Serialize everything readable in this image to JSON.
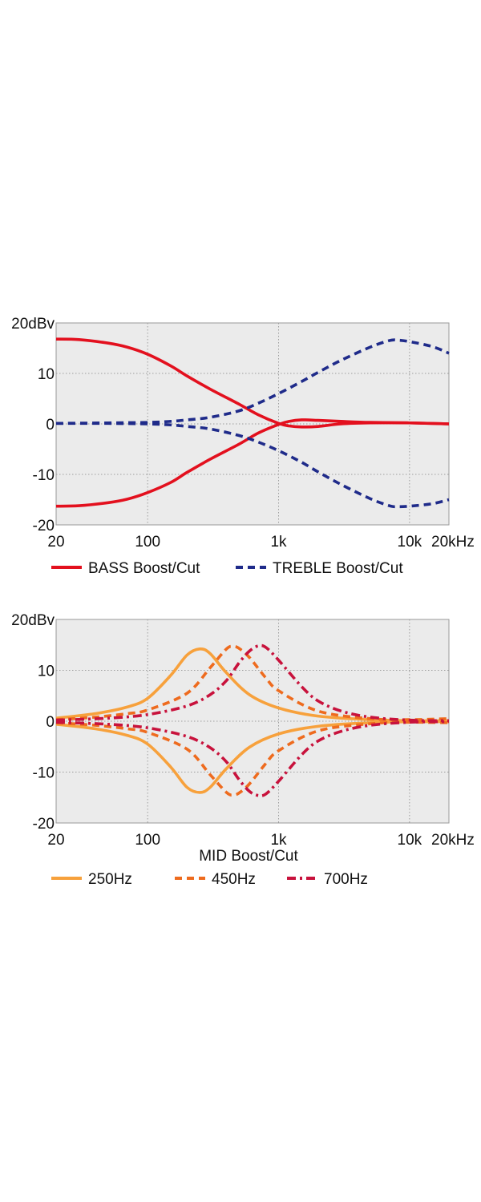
{
  "chart_data": [
    {
      "type": "line",
      "x_scale": "log",
      "xlim": [
        20,
        20000
      ],
      "ylim": [
        -20,
        20
      ],
      "grid": true,
      "background": "#ebebeb",
      "x_ticks": [
        {
          "value": 20,
          "label": "20"
        },
        {
          "value": 100,
          "label": "100"
        },
        {
          "value": 1000,
          "label": "1k"
        },
        {
          "value": 10000,
          "label": "10k"
        },
        {
          "value": 20000,
          "label": "20kHz"
        }
      ],
      "y_ticks": [
        {
          "value": 20,
          "label": "20dBv"
        },
        {
          "value": 10,
          "label": "10"
        },
        {
          "value": 0,
          "label": "0"
        },
        {
          "value": -10,
          "label": "-10"
        },
        {
          "value": -20,
          "label": "-20"
        }
      ],
      "xlabel": "",
      "legend_placement": "bottom",
      "legend": [
        {
          "label": "BASS Boost/Cut",
          "color": "#e3101e",
          "style": "solid"
        },
        {
          "label": "TREBLE Boost/Cut",
          "color": "#1f2b8a",
          "style": "dashed"
        }
      ],
      "series": [
        {
          "group": "BASS Boost/Cut",
          "color": "#e3101e",
          "style": "solid",
          "x": [
            20,
            30,
            50,
            70,
            100,
            150,
            200,
            300,
            500,
            700,
            1000,
            1200,
            1500,
            2000,
            3000,
            5000,
            10000,
            20000
          ],
          "y": [
            16.8,
            16.7,
            16.0,
            15.2,
            13.8,
            11.5,
            9.5,
            6.9,
            3.9,
            1.8,
            0.1,
            -0.4,
            -0.6,
            -0.5,
            0.0,
            0.2,
            0.2,
            0.0
          ]
        },
        {
          "group": "BASS Boost/Cut",
          "color": "#e3101e",
          "style": "solid",
          "x": [
            20,
            30,
            50,
            70,
            100,
            150,
            200,
            300,
            500,
            700,
            1000,
            1200,
            1500,
            2000,
            3000,
            5000,
            10000,
            20000
          ],
          "y": [
            -16.3,
            -16.2,
            -15.6,
            -14.9,
            -13.6,
            -11.6,
            -9.6,
            -7.0,
            -4.0,
            -1.8,
            -0.1,
            0.5,
            0.8,
            0.7,
            0.5,
            0.3,
            0.2,
            0.0
          ]
        },
        {
          "group": "TREBLE Boost/Cut",
          "color": "#1f2b8a",
          "style": "dashed",
          "x": [
            20,
            50,
            100,
            150,
            200,
            300,
            500,
            700,
            1000,
            1500,
            2000,
            3000,
            5000,
            7000,
            8000,
            10000,
            15000,
            20000
          ],
          "y": [
            0.1,
            0.2,
            0.3,
            0.5,
            0.8,
            1.3,
            2.6,
            4.1,
            6.0,
            8.4,
            10.2,
            12.6,
            15.2,
            16.5,
            16.6,
            16.3,
            15.3,
            14.0
          ]
        },
        {
          "group": "TREBLE Boost/Cut",
          "color": "#1f2b8a",
          "style": "dashed",
          "x": [
            20,
            50,
            100,
            150,
            200,
            300,
            500,
            700,
            1000,
            1500,
            2000,
            3000,
            5000,
            7000,
            8000,
            10000,
            15000,
            20000
          ],
          "y": [
            0.1,
            0.1,
            0.0,
            -0.2,
            -0.5,
            -1.0,
            -2.3,
            -3.6,
            -5.3,
            -7.6,
            -9.5,
            -12.0,
            -14.8,
            -16.2,
            -16.4,
            -16.3,
            -15.8,
            -15.0
          ]
        }
      ]
    },
    {
      "type": "line",
      "x_scale": "log",
      "xlim": [
        20,
        20000
      ],
      "ylim": [
        -20,
        20
      ],
      "grid": true,
      "background": "#ebebeb",
      "x_ticks": [
        {
          "value": 20,
          "label": "20"
        },
        {
          "value": 100,
          "label": "100"
        },
        {
          "value": 1000,
          "label": "1k"
        },
        {
          "value": 10000,
          "label": "10k"
        },
        {
          "value": 20000,
          "label": "20kHz"
        }
      ],
      "y_ticks": [
        {
          "value": 20,
          "label": "20dBv"
        },
        {
          "value": 10,
          "label": "10"
        },
        {
          "value": 0,
          "label": "0"
        },
        {
          "value": -10,
          "label": "-10"
        },
        {
          "value": -20,
          "label": "-20"
        }
      ],
      "xlabel": "MID Boost/Cut",
      "legend_placement": "bottom",
      "legend": [
        {
          "label": "250Hz",
          "color": "#f7a13c",
          "style": "solid"
        },
        {
          "label": "450Hz",
          "color": "#ee6b1e",
          "style": "dashed"
        },
        {
          "label": "700Hz",
          "color": "#c8123c",
          "style": "dashdot"
        }
      ],
      "series": [
        {
          "group": "250Hz",
          "color": "#f7a13c",
          "style": "solid",
          "x": [
            20,
            40,
            70,
            100,
            150,
            200,
            250,
            300,
            400,
            600,
            1000,
            2000,
            5000,
            10000,
            20000
          ],
          "y": [
            0.6,
            1.5,
            2.8,
            4.5,
            9.0,
            13.0,
            14.2,
            13.3,
            9.5,
            5.2,
            2.6,
            1.0,
            0.3,
            0.1,
            0.1
          ]
        },
        {
          "group": "250Hz",
          "color": "#f7a13c",
          "style": "solid",
          "x": [
            20,
            40,
            70,
            100,
            150,
            200,
            250,
            300,
            400,
            600,
            1000,
            2000,
            5000,
            10000,
            20000
          ],
          "y": [
            -0.6,
            -1.5,
            -2.8,
            -4.5,
            -9.0,
            -13.0,
            -14.0,
            -13.0,
            -9.3,
            -5.1,
            -2.5,
            -1.0,
            -0.3,
            -0.1,
            -0.1
          ]
        },
        {
          "group": "450Hz",
          "color": "#ee6b1e",
          "style": "dashed",
          "x": [
            20,
            40,
            70,
            100,
            200,
            300,
            400,
            450,
            500,
            600,
            800,
            1000,
            2000,
            5000,
            10000,
            20000
          ],
          "y": [
            0.3,
            0.8,
            1.5,
            2.2,
            5.5,
            10.5,
            14.2,
            14.7,
            14.3,
            12.5,
            8.5,
            6.0,
            2.0,
            0.5,
            0.3,
            0.5
          ]
        },
        {
          "group": "450Hz",
          "color": "#ee6b1e",
          "style": "dashed",
          "x": [
            20,
            40,
            70,
            100,
            200,
            300,
            400,
            450,
            500,
            600,
            800,
            1000,
            2000,
            5000,
            10000,
            20000
          ],
          "y": [
            -0.3,
            -0.8,
            -1.5,
            -2.2,
            -5.5,
            -10.5,
            -14.0,
            -14.5,
            -14.1,
            -12.3,
            -8.3,
            -5.8,
            -1.9,
            -0.5,
            -0.2,
            -0.3
          ]
        },
        {
          "group": "700Hz",
          "color": "#c8123c",
          "style": "dashdot",
          "x": [
            20,
            50,
            100,
            200,
            300,
            400,
            500,
            600,
            700,
            800,
            1000,
            1500,
            2000,
            3000,
            5000,
            10000,
            20000
          ],
          "y": [
            0.2,
            0.6,
            1.3,
            3.0,
            5.2,
            8.0,
            11.5,
            13.8,
            14.8,
            14.5,
            12.0,
            6.8,
            4.0,
            2.0,
            0.8,
            0.2,
            0.1
          ]
        },
        {
          "group": "700Hz",
          "color": "#c8123c",
          "style": "dashdot",
          "x": [
            20,
            50,
            100,
            200,
            300,
            400,
            500,
            600,
            700,
            800,
            1000,
            1500,
            2000,
            3000,
            5000,
            10000,
            20000
          ],
          "y": [
            -0.2,
            -0.6,
            -1.3,
            -3.0,
            -5.2,
            -8.0,
            -11.5,
            -13.8,
            -14.6,
            -14.3,
            -11.8,
            -6.6,
            -3.9,
            -2.0,
            -0.8,
            -0.2,
            -0.1
          ]
        }
      ]
    }
  ]
}
